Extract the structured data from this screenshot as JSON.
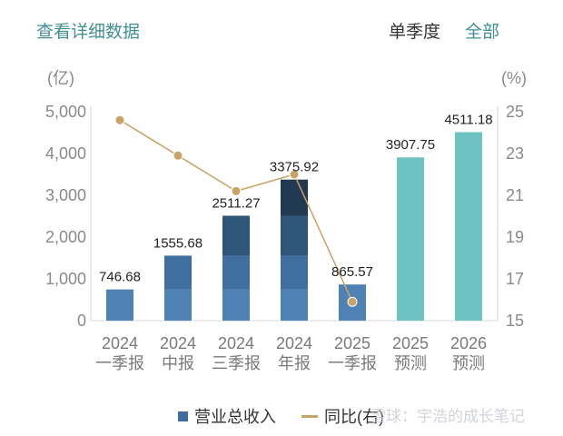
{
  "header": {
    "details_link": "查看详细数据",
    "period_label": "单季度",
    "period_all": "全部"
  },
  "chart_data": {
    "type": "bar",
    "categories": [
      [
        "2024",
        "一季报"
      ],
      [
        "2024",
        "中报"
      ],
      [
        "2024",
        "三季报"
      ],
      [
        "2024",
        "年报"
      ],
      [
        "2025",
        "一季报"
      ],
      [
        "2025",
        "预测"
      ],
      [
        "2026",
        "预测"
      ]
    ],
    "series": [
      {
        "name": "营业总收入",
        "axis": "left",
        "values": [
          746.68,
          1555.68,
          2511.27,
          3375.92,
          865.57,
          3907.75,
          4511.18
        ],
        "value_labels": [
          "746.68",
          "1555.68",
          "2511.27",
          "3375.92",
          "865.57",
          "3907.75",
          "4511.18"
        ]
      },
      {
        "name": "同比(右)",
        "type": "line",
        "axis": "right",
        "values": [
          24.6,
          22.9,
          21.2,
          22.0,
          15.9,
          null,
          null
        ]
      }
    ],
    "left_axis": {
      "unit": "(亿)",
      "ylim": [
        0,
        5000
      ],
      "ticks": [
        "0",
        "1,000",
        "2,000",
        "3,000",
        "4,000",
        "5,000"
      ],
      "tick_values": [
        0,
        1000,
        2000,
        3000,
        4000,
        5000
      ]
    },
    "right_axis": {
      "unit": "(%)",
      "ylim": [
        15,
        25
      ],
      "ticks": [
        "15",
        "17",
        "19",
        "21",
        "23",
        "25"
      ],
      "tick_values": [
        15,
        17,
        19,
        21,
        23,
        25
      ]
    },
    "colors": {
      "bar_q1": "#4f82b4",
      "bar_q2": "#3f6f9f",
      "bar_q3": "#2f5678",
      "bar_q4": "#213a52",
      "bar_forecast": "#6cc3c1",
      "line": "#c9a266",
      "axis": "#d9d9d9"
    },
    "legend_position": "bottom"
  },
  "legend": {
    "bar_label": "营业总收入",
    "line_label": "同比(右)"
  },
  "watermark": "雪球：宇浩的成长笔记"
}
